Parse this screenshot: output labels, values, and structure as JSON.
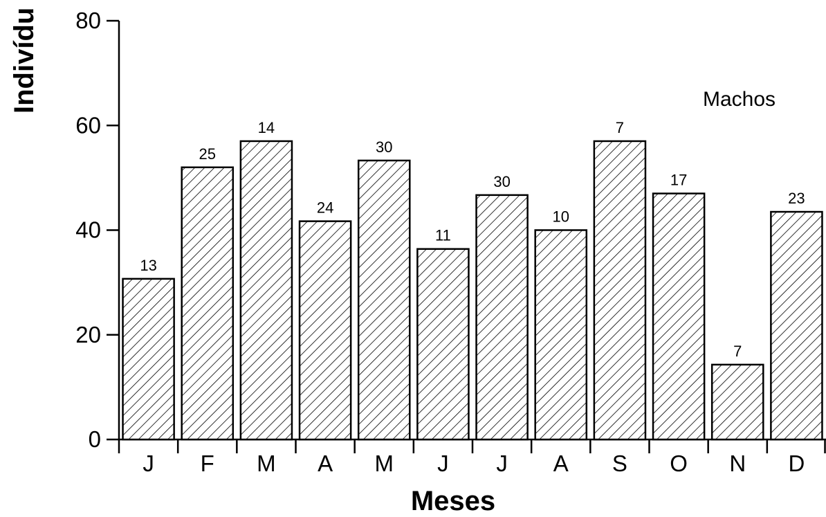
{
  "chart_data": {
    "type": "bar",
    "categories": [
      "J",
      "F",
      "M",
      "A",
      "M",
      "J",
      "J",
      "A",
      "S",
      "O",
      "N",
      "D"
    ],
    "values": [
      30.7,
      52,
      57,
      41.7,
      53.3,
      36.4,
      46.7,
      40,
      57,
      47,
      14.3,
      43.5
    ],
    "data_labels": [
      "13",
      "25",
      "14",
      "24",
      "30",
      "11",
      "30",
      "10",
      "7",
      "17",
      "7",
      "23"
    ],
    "xlabel": "Meses",
    "ylabel": "Indivídu",
    "annotation": "Machos",
    "ylim": [
      0,
      80
    ],
    "yticks": [
      0,
      20,
      40,
      60,
      80
    ],
    "yticks_labels": [
      "0",
      "20",
      "40",
      "60",
      "80"
    ],
    "bar_fill": "diagonal-hatch",
    "grid": false,
    "colors": {
      "bar_stroke": "#000000",
      "background": "#ffffff"
    }
  }
}
